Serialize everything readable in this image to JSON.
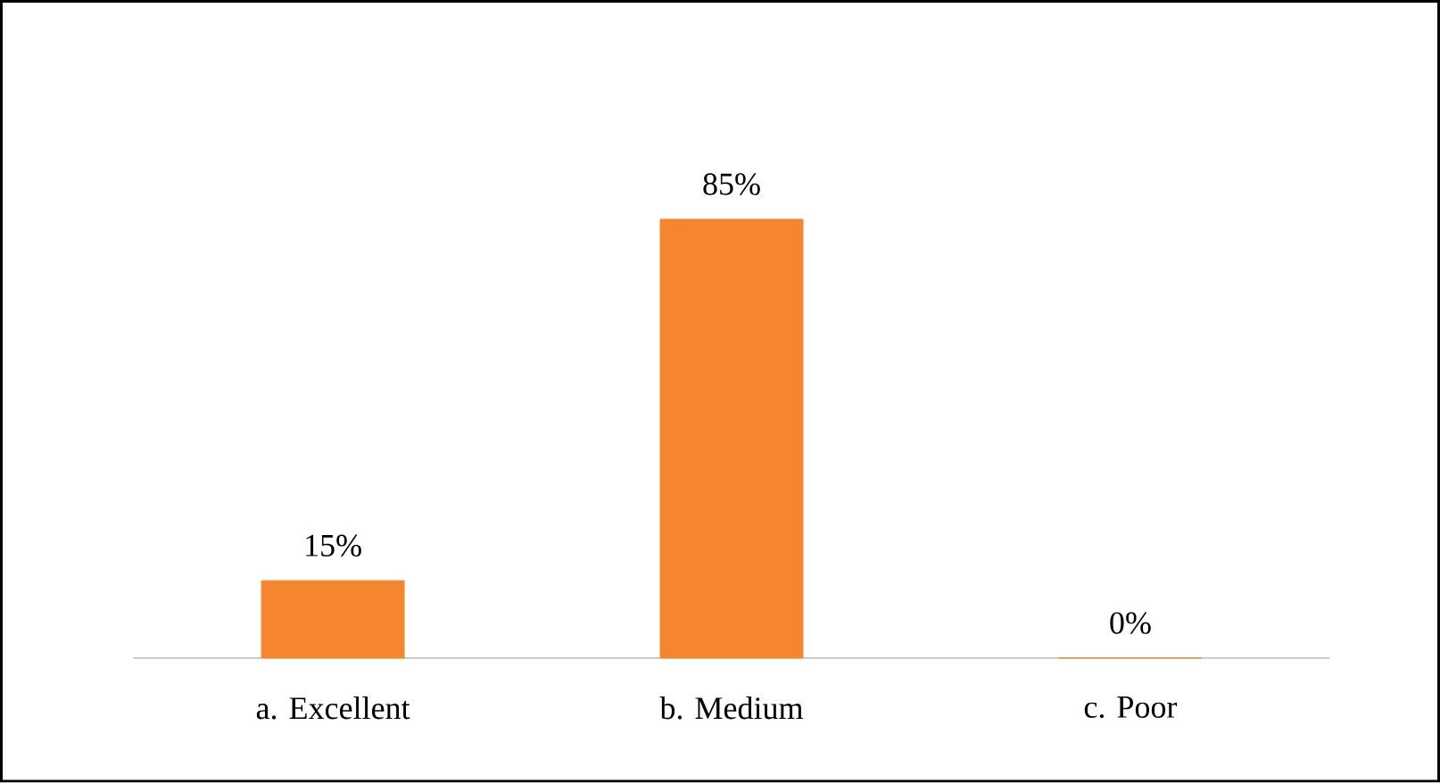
{
  "chart_data": {
    "type": "bar",
    "categories": [
      "a. Excellent",
      "b. Medium",
      "c. Poor"
    ],
    "values": [
      15,
      85,
      0
    ],
    "value_labels": [
      "15%",
      "85%",
      "0%"
    ],
    "color": "#f5862f"
  }
}
